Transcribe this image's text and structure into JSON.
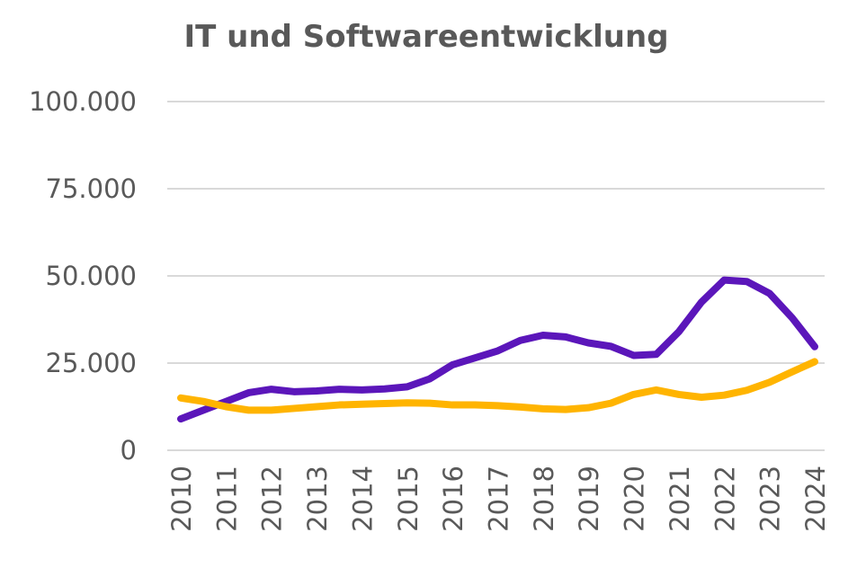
{
  "chart_data": {
    "type": "line",
    "title": "IT und Softwareentwicklung",
    "xlabel": "",
    "ylabel": "",
    "ylim": [
      0,
      100000
    ],
    "yticks": [
      "0",
      "25.000",
      "50.000",
      "75.000",
      "100.000"
    ],
    "ytick_values": [
      0,
      25000,
      50000,
      75000,
      100000
    ],
    "xticks": [
      "2010",
      "2011",
      "2012",
      "2013",
      "2014",
      "2015",
      "2016",
      "2017",
      "2018",
      "2019",
      "2020",
      "2021",
      "2022",
      "2023",
      "2024"
    ],
    "x": [
      2010,
      2010.5,
      2011,
      2011.5,
      2012,
      2012.5,
      2013,
      2013.5,
      2014,
      2014.5,
      2015,
      2015.5,
      2016,
      2016.5,
      2017,
      2017.5,
      2018,
      2018.5,
      2019,
      2019.5,
      2020,
      2020.5,
      2021,
      2021.5,
      2022,
      2022.5,
      2023,
      2023.5,
      2024
    ],
    "grid": true,
    "legend": "none",
    "series": [
      {
        "color": "#5B16BA",
        "values": [
          9000,
          11500,
          14000,
          16500,
          17500,
          16800,
          17000,
          17500,
          17300,
          17600,
          18200,
          20500,
          24500,
          26500,
          28500,
          31500,
          33000,
          32500,
          30800,
          29800,
          27200,
          27500,
          34000,
          42500,
          48800,
          48400,
          45000,
          38000,
          29700
        ]
      },
      {
        "color": "#FFB400",
        "values": [
          15000,
          14000,
          12500,
          11500,
          11500,
          12000,
          12500,
          13000,
          13200,
          13400,
          13600,
          13500,
          13000,
          13000,
          12800,
          12400,
          11900,
          11700,
          12200,
          13500,
          16000,
          17300,
          16000,
          15200,
          15800,
          17200,
          19500,
          22500,
          25400
        ]
      }
    ]
  }
}
